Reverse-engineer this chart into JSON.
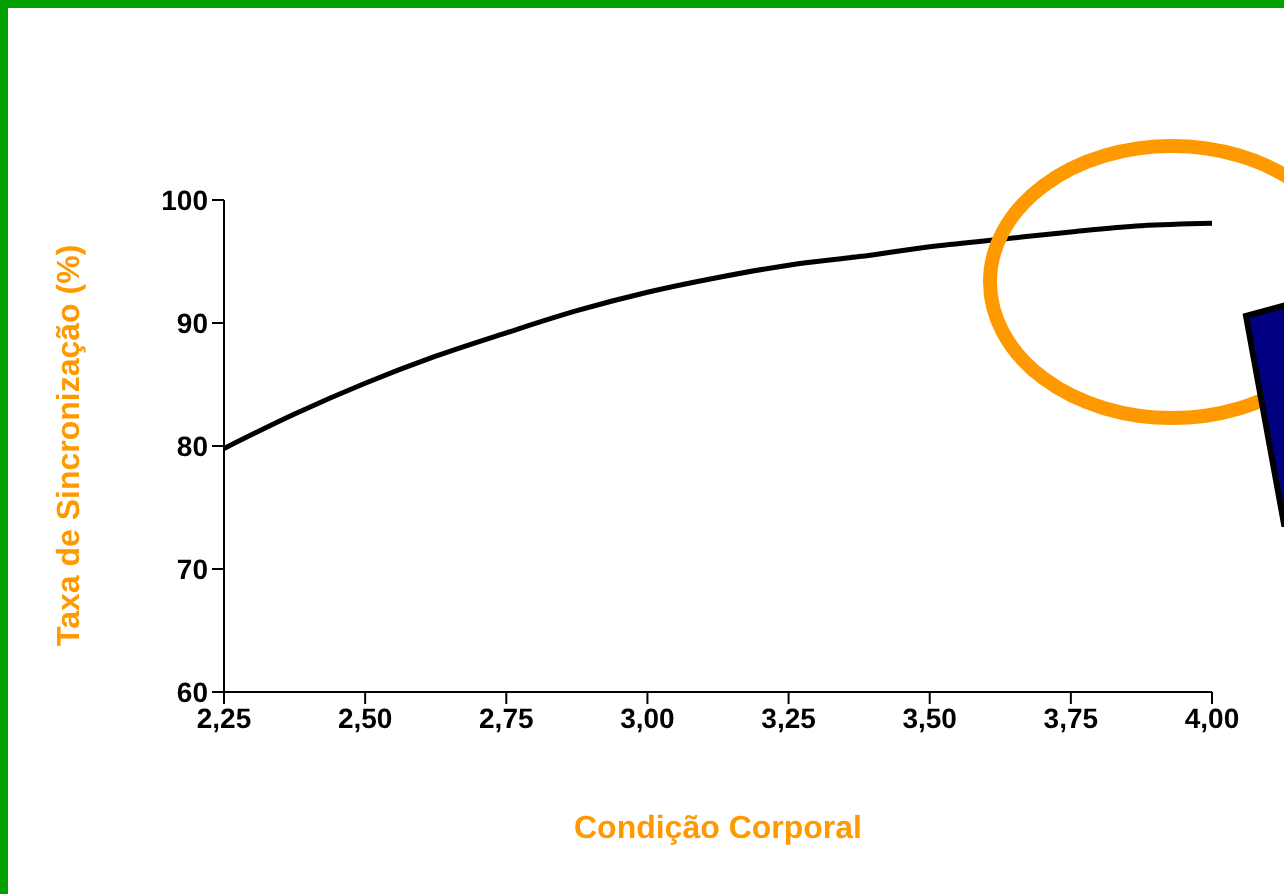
{
  "chart_data": {
    "type": "line",
    "xlabel": "Condição Corporal",
    "ylabel": "Taxa de Sincronização (%)",
    "x": [
      2.25,
      2.375,
      2.5,
      2.625,
      2.75,
      2.875,
      3.0,
      3.125,
      3.25,
      3.375,
      3.5,
      3.625,
      3.75,
      3.875,
      4.0
    ],
    "series": [
      {
        "color": "#000000",
        "values": [
          79.8,
          82.6,
          85.1,
          87.3,
          89.2,
          91.0,
          92.5,
          93.7,
          94.7,
          95.4,
          96.2,
          96.8,
          97.4,
          97.9,
          98.1
        ]
      }
    ],
    "xlim": [
      2.25,
      4.0
    ],
    "xticks": [
      {
        "value": 2.25,
        "label": "2,25"
      },
      {
        "value": 2.5,
        "label": "2,50"
      },
      {
        "value": 2.75,
        "label": "2,75"
      },
      {
        "value": 3.0,
        "label": "3,00"
      },
      {
        "value": 3.25,
        "label": "3,25"
      },
      {
        "value": 3.5,
        "label": "3,50"
      },
      {
        "value": 3.75,
        "label": "3,75"
      },
      {
        "value": 4.0,
        "label": "4,00"
      }
    ],
    "ylim": [
      60,
      100
    ],
    "yticks": [
      60,
      70,
      80,
      90,
      100
    ],
    "grid": false,
    "legend": false,
    "marker": "none",
    "line_style": "solid"
  }
}
